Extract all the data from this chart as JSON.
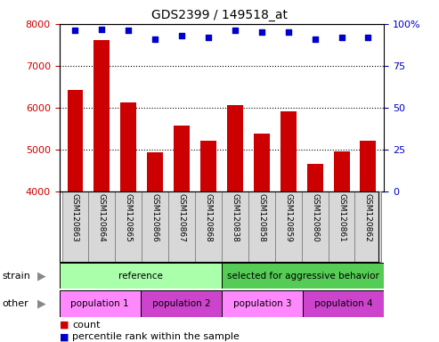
{
  "title": "GDS2399 / 149518_at",
  "samples": [
    "GSM120863",
    "GSM120864",
    "GSM120865",
    "GSM120866",
    "GSM120867",
    "GSM120868",
    "GSM120838",
    "GSM120858",
    "GSM120859",
    "GSM120860",
    "GSM120861",
    "GSM120862"
  ],
  "counts": [
    6420,
    7620,
    6130,
    4930,
    5570,
    5210,
    6070,
    5390,
    5910,
    4660,
    4960,
    5220
  ],
  "percentile_ranks": [
    96,
    97,
    96,
    91,
    93,
    92,
    96,
    95,
    95,
    91,
    92,
    92
  ],
  "ylim_left": [
    4000,
    8000
  ],
  "ylim_right": [
    0,
    100
  ],
  "yticks_left": [
    4000,
    5000,
    6000,
    7000,
    8000
  ],
  "yticks_right": [
    0,
    25,
    50,
    75,
    100
  ],
  "bar_color": "#cc0000",
  "dot_color": "#0000cc",
  "strain_colors": [
    "#aaffaa",
    "#55cc55"
  ],
  "strain_texts": [
    "reference",
    "selected for aggressive behavior"
  ],
  "strain_splits": [
    0,
    6,
    12
  ],
  "other_colors": [
    "#ff88ff",
    "#cc44cc",
    "#ff88ff",
    "#cc44cc"
  ],
  "other_texts": [
    "population 1",
    "population 2",
    "population 3",
    "population 4"
  ],
  "other_splits": [
    0,
    3,
    6,
    9,
    12
  ],
  "legend_bar_label": "count",
  "legend_dot_label": "percentile rank within the sample",
  "bar_color_red": "#cc0000",
  "dot_color_blue": "#0000cc",
  "tick_box_color": "#d8d8d8",
  "tick_box_edge": "#888888"
}
